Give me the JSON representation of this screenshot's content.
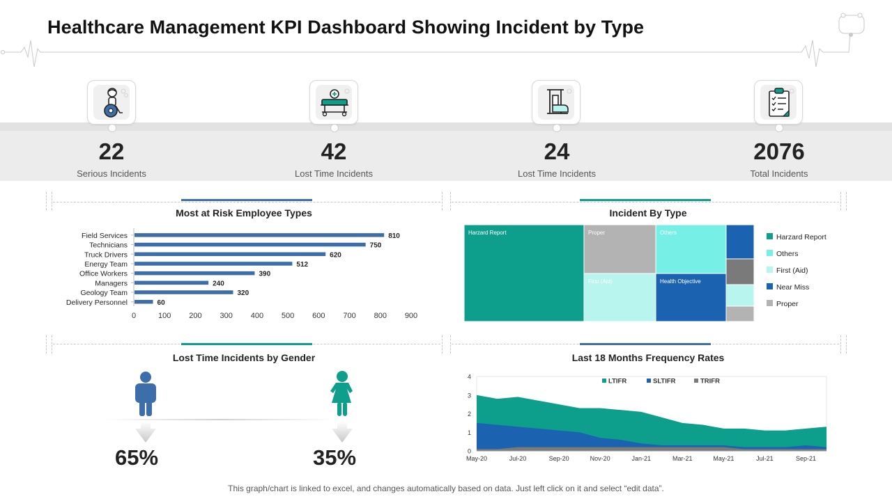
{
  "header": {
    "title": "Healthcare Management KPI Dashboard Showing Incident by Type"
  },
  "kpis": [
    {
      "value": "22",
      "label": "Serious Incidents",
      "icon": "wheelchair-patient-icon"
    },
    {
      "value": "42",
      "label": "Lost Time Incidents",
      "icon": "hospital-bed-icon"
    },
    {
      "value": "24",
      "label": "Lost Time Incidents",
      "icon": "leg-traction-icon"
    },
    {
      "value": "2076",
      "label": "Total Incidents",
      "icon": "clipboard-checklist-icon"
    }
  ],
  "colors": {
    "teal": "#0e9e8c",
    "blue": "#3e6ea9",
    "light_cyan": "#b8f5ef",
    "aqua": "#76f0e6",
    "gray": "#b3b3b3",
    "dark_gray": "#7a7a7a",
    "navy": "#1b63b0"
  },
  "panels": {
    "risk": {
      "title": "Most at Risk Employee Types"
    },
    "incident_type": {
      "title": "Incident By Type"
    },
    "gender": {
      "title": "Lost Time Incidents by Gender"
    },
    "frequency": {
      "title": "Last 18 Months Frequency Rates"
    }
  },
  "gender": {
    "male_pct": "65%",
    "female_pct": "35%",
    "male_value": 0.65,
    "female_value": 0.35
  },
  "footer": {
    "note": "This graph/chart is linked to excel, and changes automatically based on data. Just left click on it and select “edit data”."
  },
  "chart_data": [
    {
      "type": "bar",
      "orientation": "horizontal",
      "title": "Most at Risk Employee Types",
      "categories": [
        "Field Services",
        "Technicians",
        "Truck Drivers",
        "Energy Team",
        "Office Workers",
        "Managers",
        "Geology Team",
        "Delivery Personnel"
      ],
      "values": [
        810,
        750,
        620,
        512,
        390,
        240,
        320,
        60
      ],
      "xlim": [
        0,
        900
      ],
      "xticks": [
        0,
        100,
        200,
        300,
        400,
        500,
        600,
        700,
        800,
        900
      ],
      "color": "#3e6ea9"
    },
    {
      "type": "treemap",
      "title": "Incident By Type",
      "tiles": [
        {
          "label": "Harzard Report",
          "category": "Harzard Report",
          "color": "#0e9e8c"
        },
        {
          "label": "Proper",
          "category": "Proper",
          "color": "#b3b3b3"
        },
        {
          "label": "Others",
          "category": "Others",
          "color": "#76f0e6"
        },
        {
          "label": "First (Aid)",
          "category": "First (Aid)",
          "color": "#b8f5ef"
        },
        {
          "label": "Health Objective",
          "category": "Near Miss",
          "color": "#1b63b0"
        },
        {
          "label": "",
          "category": "Near Miss",
          "color": "#1b63b0"
        },
        {
          "label": "",
          "category": "",
          "color": "#7a7a7a"
        },
        {
          "label": "",
          "category": "First (Aid)",
          "color": "#b8f5ef"
        },
        {
          "label": "",
          "category": "Proper",
          "color": "#b3b3b3"
        }
      ],
      "legend": [
        {
          "name": "Harzard Report",
          "color": "#0e9e8c"
        },
        {
          "name": "Others",
          "color": "#76f0e6"
        },
        {
          "name": "First (Aid)",
          "color": "#b8f5ef"
        },
        {
          "name": "Near Miss",
          "color": "#1b63b0"
        },
        {
          "name": "Proper",
          "color": "#b3b3b3"
        }
      ]
    },
    {
      "type": "area",
      "title": "Last 18 Months Frequency Rates",
      "x": [
        "May-20",
        "Jun-20",
        "Jul-20",
        "Aug-20",
        "Sep-20",
        "Oct-20",
        "Nov-20",
        "Dec-20",
        "Jan-21",
        "Feb-21",
        "Mar-21",
        "Apr-21",
        "May-21",
        "Jun-21",
        "Jul-21",
        "Aug-21",
        "Sep-21",
        "Oct-21"
      ],
      "xticks": [
        "May-20",
        "Jul-20",
        "Sep-20",
        "Nov-20",
        "Jan-21",
        "Mar-21",
        "May-21",
        "Jul-21",
        "Sep-21"
      ],
      "ylim": [
        0,
        4
      ],
      "yticks": [
        0,
        1,
        2,
        3,
        4
      ],
      "series": [
        {
          "name": "LTIFR",
          "color": "#0e9e8c",
          "values": [
            3.0,
            2.8,
            2.9,
            2.7,
            2.5,
            2.3,
            2.3,
            2.2,
            2.1,
            1.8,
            1.5,
            1.4,
            1.2,
            1.2,
            1.1,
            1.1,
            1.2,
            1.3
          ]
        },
        {
          "name": "SLTIFR",
          "color": "#1b63b0",
          "values": [
            1.5,
            1.4,
            1.3,
            1.2,
            1.1,
            1.0,
            0.7,
            0.6,
            0.4,
            0.3,
            0.3,
            0.3,
            0.3,
            0.2,
            0.2,
            0.2,
            0.3,
            0.2
          ]
        },
        {
          "name": "TRIFR",
          "color": "#7a7a7a",
          "values": [
            0.1,
            0.1,
            0.2,
            0.2,
            0.2,
            0.2,
            0.2,
            0.2,
            0.2,
            0.2,
            0.2,
            0.2,
            0.2,
            0.1,
            0.1,
            0.1,
            0.1,
            0.1
          ]
        }
      ],
      "legend_position": "top"
    }
  ]
}
